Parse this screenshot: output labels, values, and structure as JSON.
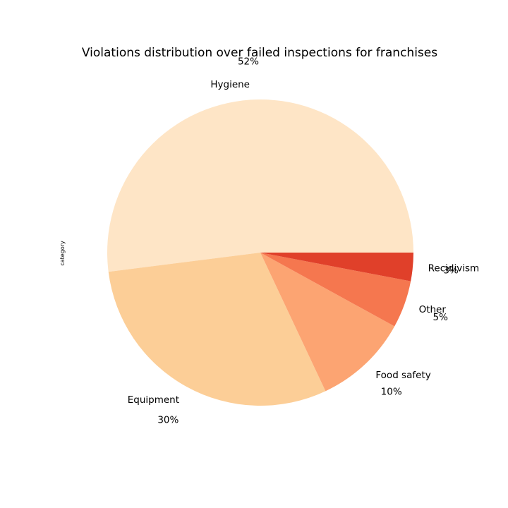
{
  "chart_data": {
    "type": "pie",
    "title": "Violations distribution over failed inspections for franchises",
    "ylabel": "category",
    "categories": [
      "Hygiene",
      "Equipment",
      "Food safety",
      "Other",
      "Recidivism"
    ],
    "values": [
      52,
      30,
      10,
      5,
      3
    ],
    "percent_labels": [
      "52%",
      "30%",
      "10%",
      "5%",
      "3%"
    ],
    "colors": [
      "#fee5c6",
      "#fcce97",
      "#fca472",
      "#f5774f",
      "#e0402a"
    ],
    "start_angle_deg": 0,
    "direction": "counterclockwise"
  }
}
